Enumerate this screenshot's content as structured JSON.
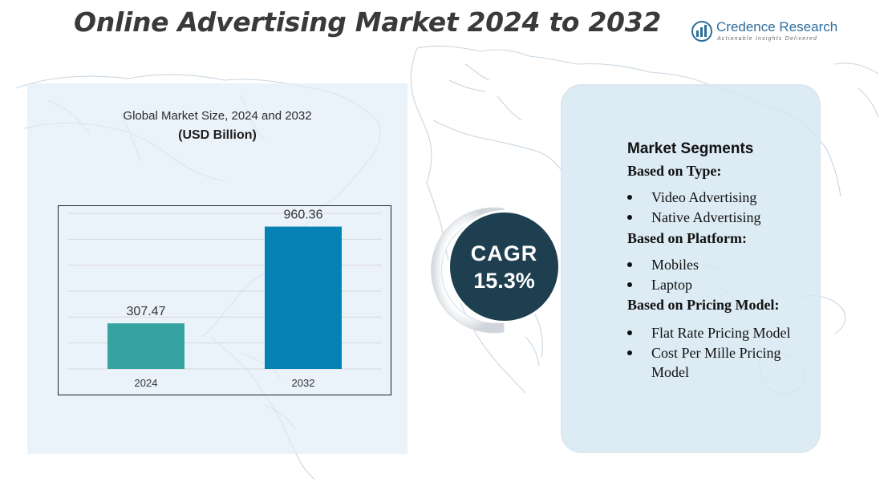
{
  "header": {
    "title": "Online Advertising Market 2024 to 2032"
  },
  "brand": {
    "name": "Credence Research",
    "tagline": "Actionable Insights Delivered"
  },
  "chart_data": {
    "type": "bar",
    "title": "Global Market Size, 2024 and 2032",
    "subtitle": "(USD Billion)",
    "categories": [
      "2024",
      "2032"
    ],
    "values": [
      307.47,
      960.36
    ],
    "value_labels": [
      "307.47",
      "960.36"
    ],
    "colors": [
      "#35a3a0",
      "#0681b4"
    ],
    "xlabel": "",
    "ylabel": "",
    "ylim": [
      0,
      1050
    ],
    "grid": true
  },
  "cagr": {
    "label": "CAGR",
    "value": "15.3%"
  },
  "segments": {
    "heading": "Market Segments",
    "groups": [
      {
        "title": "Based on Type:",
        "items": [
          "Video Advertising",
          "Native Advertising"
        ]
      },
      {
        "title": "Based on Platform:",
        "items": [
          "Mobiles",
          "Laptop"
        ]
      },
      {
        "title": "Based on Pricing Model:",
        "items": [
          "Flat Rate Pricing Model",
          "Cost Per Mille Pricing Model"
        ]
      }
    ]
  },
  "colors": {
    "title_text": "#3a3a3a",
    "cagr_bg": "#1d3f4f",
    "brand": "#2f6e9c",
    "panel_left": "#e0ecf7",
    "panel_right": "#d6e8f2"
  }
}
